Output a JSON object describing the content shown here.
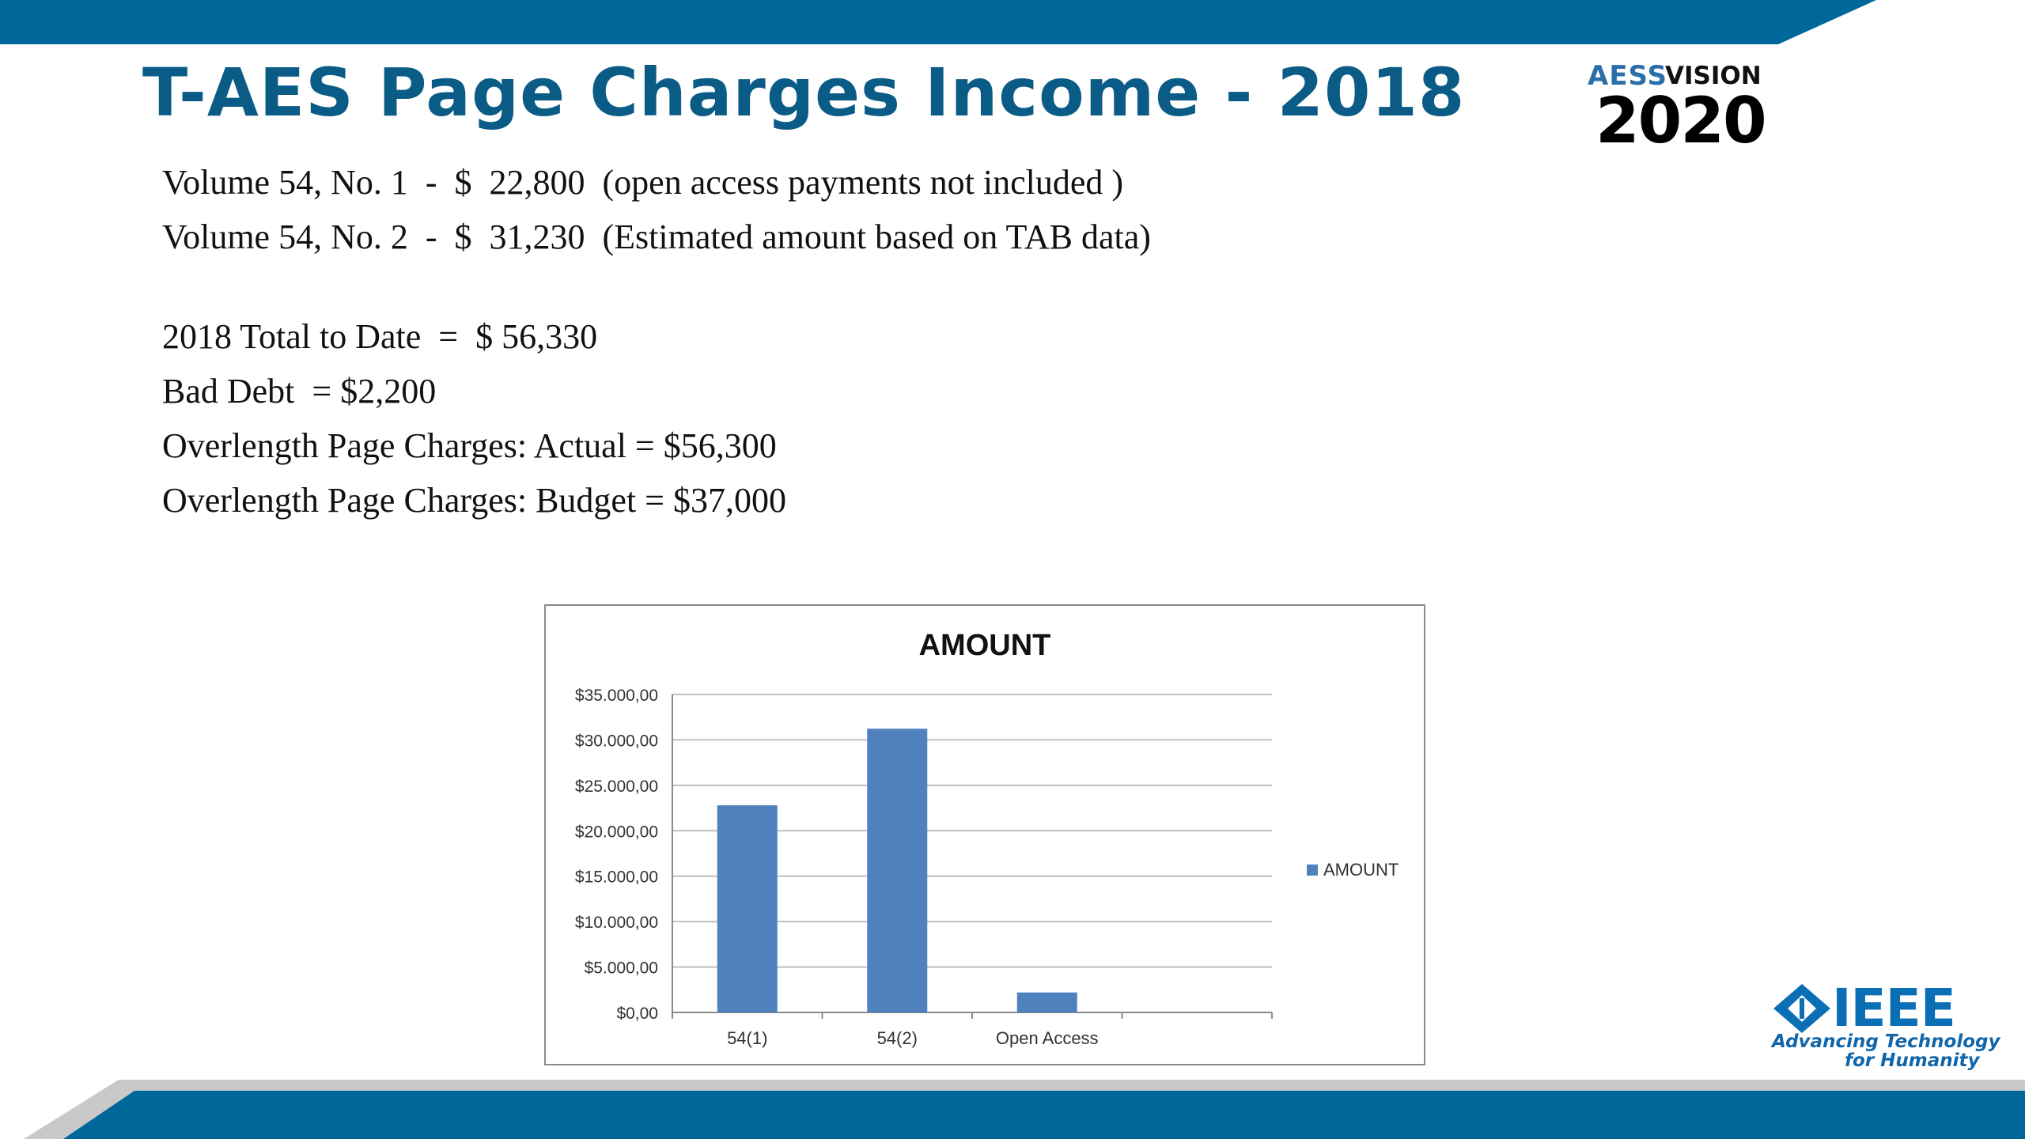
{
  "slide": {
    "title": "T-AES Page Charges Income - 2018",
    "brand_color": "#0a5c87",
    "band_color": "#00679a"
  },
  "logo": {
    "aess_mark": "AESS",
    "vision": "VISION",
    "year": "2020",
    "ieee_wordmark": "IEEE",
    "ieee_tagline_1": "Advancing Technology",
    "ieee_tagline_2": "for Humanity"
  },
  "body": {
    "lines": [
      "Volume 54, No. 1  -  $  22,800  (open access payments not included )",
      "Volume 54, No. 2  -  $  31,230  (Estimated amount based on TAB data)",
      "2018 Total to Date  =  $ 56,330",
      "Bad Debt  = $2,200",
      "Overlength Page Charges: Actual = $56,300",
      "Overlength Page Charges: Budget = $37,000"
    ]
  },
  "chart_data": {
    "type": "bar",
    "title": "AMOUNT",
    "categories": [
      "54(1)",
      "54(2)",
      "Open Access"
    ],
    "series": [
      {
        "name": "AMOUNT",
        "values": [
          22800,
          31230,
          2200
        ],
        "color": "#4f81bd"
      }
    ],
    "ylim": [
      0,
      35000
    ],
    "yticks": [
      0,
      5000,
      10000,
      15000,
      20000,
      25000,
      30000,
      35000
    ],
    "ytick_labels": [
      "$0,00",
      "$5.000,00",
      "$10.000,00",
      "$15.000,00",
      "$20.000,00",
      "$25.000,00",
      "$30.000,00",
      "$35.000,00"
    ],
    "grid": true,
    "legend": "right"
  }
}
